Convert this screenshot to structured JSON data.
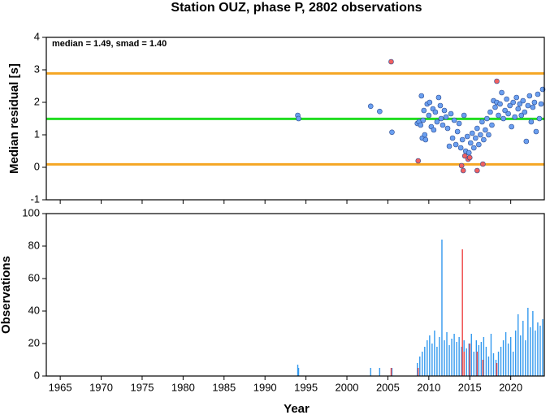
{
  "chart_data": [
    {
      "type": "scatter",
      "title": "Station OUZ, phase P, 2802 observations",
      "y_label": "Median residual [s]",
      "annotation": "median = 1.49, smad = 1.40",
      "xlim": [
        1963.3,
        2024.1
      ],
      "xticks": [
        1965,
        1970,
        1975,
        1980,
        1985,
        1990,
        1995,
        2000,
        2005,
        2010,
        2015,
        2020
      ],
      "ylim": [
        -1,
        4
      ],
      "yticks": [
        -1,
        0,
        1,
        2,
        3,
        4
      ],
      "hlines": [
        {
          "value": 2.89,
          "color": "#f5a623"
        },
        {
          "value": 1.49,
          "color": "#22dd22"
        },
        {
          "value": 0.09,
          "color": "#f5a623"
        }
      ],
      "series": [
        {
          "color": "#6a9ff0",
          "x": [
            1994.0,
            1994.1,
            2002.9,
            2004.0,
            2005.5,
            2008.6,
            2008.8,
            2009.0,
            2009.1,
            2009.2,
            2009.3,
            2009.4,
            2009.5,
            2009.6,
            2009.8,
            2010.0,
            2010.1,
            2010.3,
            2010.5,
            2010.6,
            2010.8,
            2011.0,
            2011.2,
            2011.4,
            2011.5,
            2011.7,
            2011.9,
            2012.1,
            2012.3,
            2012.5,
            2012.7,
            2012.9,
            2013.1,
            2013.3,
            2013.5,
            2013.7,
            2013.9,
            2014.1,
            2014.3,
            2014.5,
            2014.7,
            2014.9,
            2015.1,
            2015.3,
            2015.5,
            2015.7,
            2015.9,
            2016.1,
            2016.3,
            2016.5,
            2016.7,
            2016.9,
            2017.1,
            2017.3,
            2017.5,
            2017.7,
            2017.9,
            2018.1,
            2018.3,
            2018.5,
            2018.7,
            2018.9,
            2019.1,
            2019.3,
            2019.5,
            2019.7,
            2019.9,
            2020.1,
            2020.3,
            2020.5,
            2020.7,
            2020.9,
            2021.1,
            2021.3,
            2021.5,
            2021.7,
            2021.9,
            2022.1,
            2022.3,
            2022.5,
            2022.7,
            2022.9,
            2023.1,
            2023.3,
            2023.5,
            2023.7,
            2023.9
          ],
          "values": [
            1.6,
            1.5,
            1.88,
            1.72,
            1.08,
            1.35,
            1.4,
            1.3,
            2.2,
            0.9,
            1.45,
            1.75,
            1.0,
            0.85,
            1.95,
            1.6,
            2.0,
            1.25,
            1.8,
            1.15,
            1.7,
            1.4,
            2.15,
            1.9,
            1.5,
            1.3,
            1.75,
            1.55,
            1.2,
            0.65,
            1.65,
            0.9,
            1.45,
            0.7,
            1.1,
            1.35,
            0.6,
            0.85,
            1.6,
            0.5,
            0.95,
            0.45,
            0.75,
            1.05,
            0.6,
            0.9,
            1.2,
            0.7,
            1.0,
            1.4,
            0.85,
            1.15,
            1.5,
            1.0,
            1.7,
            1.3,
            2.05,
            1.85,
            2.0,
            1.6,
            1.95,
            2.3,
            1.5,
            1.75,
            2.1,
            1.65,
            1.9,
            1.25,
            2.0,
            1.55,
            2.15,
            1.8,
            1.95,
            1.6,
            2.05,
            1.7,
            0.8,
            1.9,
            2.2,
            1.4,
            1.85,
            2.0,
            1.1,
            2.25,
            1.5,
            1.95,
            2.4
          ]
        },
        {
          "color": "#f06060",
          "x": [
            2005.4,
            2008.7,
            2014.0,
            2014.2,
            2014.4,
            2014.8,
            2015.0,
            2015.9,
            2016.6,
            2018.3
          ],
          "values": [
            3.25,
            0.2,
            0.05,
            -0.1,
            0.35,
            0.25,
            0.3,
            -0.1,
            0.1,
            2.65
          ]
        }
      ]
    },
    {
      "type": "bar",
      "y_label": "Observations",
      "x_label": "Year",
      "xlim": [
        1963.3,
        2024.1
      ],
      "xticks": [
        1965,
        1970,
        1975,
        1980,
        1985,
        1990,
        1995,
        2000,
        2005,
        2010,
        2015,
        2020
      ],
      "ylim": [
        0,
        100
      ],
      "yticks": [
        0,
        20,
        40,
        60,
        80,
        100
      ],
      "series": [
        {
          "color": "#3399ee",
          "x": [
            1994.0,
            1994.1,
            2002.9,
            2004.0,
            2005.5,
            2008.6,
            2008.9,
            2009.2,
            2009.5,
            2009.8,
            2010.1,
            2010.4,
            2010.7,
            2011.0,
            2011.3,
            2011.6,
            2011.9,
            2012.2,
            2012.5,
            2012.8,
            2013.1,
            2013.4,
            2013.7,
            2014.0,
            2014.3,
            2014.6,
            2014.9,
            2015.2,
            2015.5,
            2015.8,
            2016.1,
            2016.4,
            2016.7,
            2017.0,
            2017.3,
            2017.6,
            2017.9,
            2018.2,
            2018.5,
            2018.8,
            2019.1,
            2019.4,
            2019.7,
            2020.0,
            2020.3,
            2020.6,
            2020.9,
            2021.2,
            2021.5,
            2021.8,
            2022.1,
            2022.4,
            2022.7,
            2023.0,
            2023.3,
            2023.6,
            2023.9
          ],
          "values": [
            7,
            5,
            5,
            5,
            5,
            8,
            12,
            15,
            18,
            22,
            25,
            20,
            28,
            18,
            24,
            84,
            22,
            27,
            19,
            23,
            26,
            21,
            24,
            18,
            22,
            17,
            20,
            26,
            15,
            22,
            19,
            21,
            24,
            18,
            12,
            26,
            14,
            10,
            15,
            18,
            22,
            27,
            20,
            24,
            15,
            28,
            38,
            25,
            34,
            22,
            42,
            30,
            40,
            28,
            33,
            31,
            35
          ]
        },
        {
          "color": "#ee4444",
          "x": [
            2005.4,
            2008.7,
            2014.1,
            2014.3,
            2015.0,
            2015.9,
            2016.6,
            2018.3
          ],
          "values": [
            5,
            5,
            78,
            15,
            20,
            15,
            10,
            8
          ]
        }
      ]
    }
  ]
}
